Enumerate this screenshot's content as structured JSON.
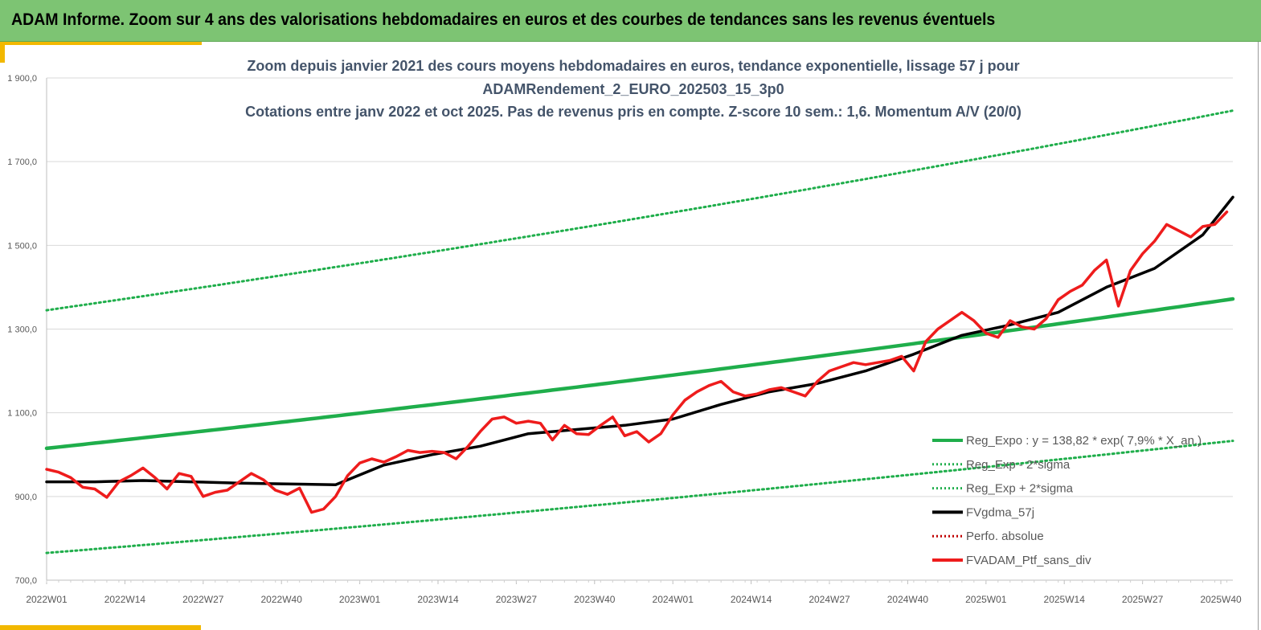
{
  "header": {
    "title": "ADAM Informe. Zoom sur 4 ans des valorisations hebdomadaires en euros et des courbes de tendances sans les revenus éventuels"
  },
  "colors": {
    "header_bg": "#7dc473",
    "accent": "#f2b800",
    "green": "#1fae4b",
    "red": "#ee1c1c",
    "black": "#000000",
    "dotted_red": "#c00000"
  },
  "chart_data": {
    "type": "line",
    "title_lines": [
      "Zoom depuis janvier 2021 des cours moyens hebdomadaires  en euros, tendance exponentielle, lissage 57 j pour",
      "ADAMRendement_2_EURO_202503_15_3p0",
      "Cotations  entre janv 2022 et oct 2025. Pas de revenus pris en compte. Z-score 10 sem.: 1,6. Momentum A/V (20/0)"
    ],
    "ylim": [
      700,
      1900
    ],
    "yticks": [
      700,
      900,
      1100,
      1300,
      1500,
      1700,
      1900
    ],
    "ytick_labels": [
      "700,0",
      "900,0",
      "1 100,0",
      "1 300,0",
      "1 500,0",
      "1 700,0",
      "1 900,0"
    ],
    "xlim": [
      0,
      197
    ],
    "xticks": [
      0,
      13,
      26,
      39,
      52,
      65,
      78,
      91,
      104,
      117,
      130,
      143,
      156,
      169,
      182,
      195
    ],
    "xtick_labels": [
      "2022W01",
      "2022W14",
      "2022W27",
      "2022W40",
      "2023W01",
      "2023W14",
      "2023W27",
      "2023W40",
      "2024W01",
      "2024W14",
      "2024W27",
      "2024W40",
      "2025W01",
      "2025W14",
      "2025W27",
      "2025W40"
    ],
    "regression": {
      "coef": 138.82,
      "rate": 0.079,
      "sigma_band": 330
    },
    "legend": [
      {
        "label": "Reg_Expo : y = 138,82 * exp( 7,9% *  X_an.)",
        "style": "solid",
        "color": "#1fae4b"
      },
      {
        "label": "Reg_Exp - 2*sigma",
        "style": "dotted",
        "color": "#1fae4b"
      },
      {
        "label": "Reg_Exp + 2*sigma",
        "style": "dotted",
        "color": "#1fae4b"
      },
      {
        "label": "FVgdma_57j",
        "style": "solid",
        "color": "#000000"
      },
      {
        "label": "Perfo. absolue",
        "style": "dotted",
        "color": "#c00000"
      },
      {
        "label": "FVADAM_Ptf_sans_div",
        "style": "solid",
        "color": "#ee1c1c"
      }
    ],
    "series": [
      {
        "name": "FVADAM_Ptf_sans_div",
        "x": [
          0,
          2,
          4,
          6,
          8,
          10,
          12,
          14,
          16,
          18,
          20,
          22,
          24,
          26,
          28,
          30,
          32,
          34,
          36,
          38,
          40,
          42,
          44,
          46,
          48,
          50,
          52,
          54,
          56,
          58,
          60,
          62,
          64,
          66,
          68,
          70,
          72,
          74,
          76,
          78,
          80,
          82,
          84,
          86,
          88,
          90,
          92,
          94,
          96,
          98,
          100,
          102,
          104,
          106,
          108,
          110,
          112,
          114,
          116,
          118,
          120,
          122,
          124,
          126,
          128,
          130,
          132,
          134,
          136,
          138,
          140,
          142,
          144,
          146,
          148,
          150,
          152,
          154,
          156,
          158,
          160,
          162,
          164,
          166,
          168,
          170,
          172,
          174,
          176,
          178,
          180,
          182,
          184,
          186,
          188,
          190,
          192,
          194,
          196
        ],
        "values": [
          965,
          958,
          945,
          922,
          918,
          898,
          935,
          950,
          968,
          945,
          918,
          955,
          948,
          900,
          910,
          915,
          935,
          955,
          940,
          915,
          905,
          920,
          862,
          870,
          900,
          950,
          980,
          990,
          982,
          995,
          1010,
          1005,
          1008,
          1005,
          990,
          1020,
          1055,
          1085,
          1090,
          1075,
          1080,
          1075,
          1035,
          1070,
          1050,
          1048,
          1070,
          1090,
          1045,
          1055,
          1030,
          1050,
          1095,
          1130,
          1150,
          1165,
          1175,
          1150,
          1140,
          1145,
          1155,
          1160,
          1150,
          1140,
          1175,
          1200,
          1210,
          1220,
          1215,
          1220,
          1225,
          1235,
          1200,
          1270,
          1300,
          1320,
          1340,
          1320,
          1290,
          1280,
          1320,
          1305,
          1300,
          1325,
          1370,
          1390,
          1405,
          1440,
          1465,
          1355,
          1440,
          1480,
          1510,
          1550,
          1535,
          1520,
          1545,
          1550,
          1580
        ]
      },
      {
        "name": "FVgdma_57j",
        "x": [
          0,
          8,
          16,
          24,
          32,
          40,
          48,
          56,
          64,
          72,
          80,
          88,
          96,
          104,
          112,
          120,
          128,
          136,
          144,
          152,
          160,
          168,
          176,
          184,
          192,
          197
        ],
        "values": [
          935,
          935,
          938,
          935,
          932,
          930,
          928,
          975,
          1000,
          1020,
          1050,
          1060,
          1070,
          1085,
          1120,
          1150,
          1170,
          1200,
          1240,
          1285,
          1310,
          1340,
          1400,
          1445,
          1525,
          1615
        ]
      },
      {
        "name": "Reg_Expo",
        "x": [
          0,
          197
        ],
        "values": [
          1015,
          1372
        ]
      },
      {
        "name": "Reg_Exp - 2*sigma",
        "x": [
          0,
          197
        ],
        "values": [
          765,
          1033
        ]
      },
      {
        "name": "Reg_Exp + 2*sigma",
        "x": [
          0,
          197
        ],
        "values": [
          1345,
          1822
        ]
      }
    ]
  }
}
